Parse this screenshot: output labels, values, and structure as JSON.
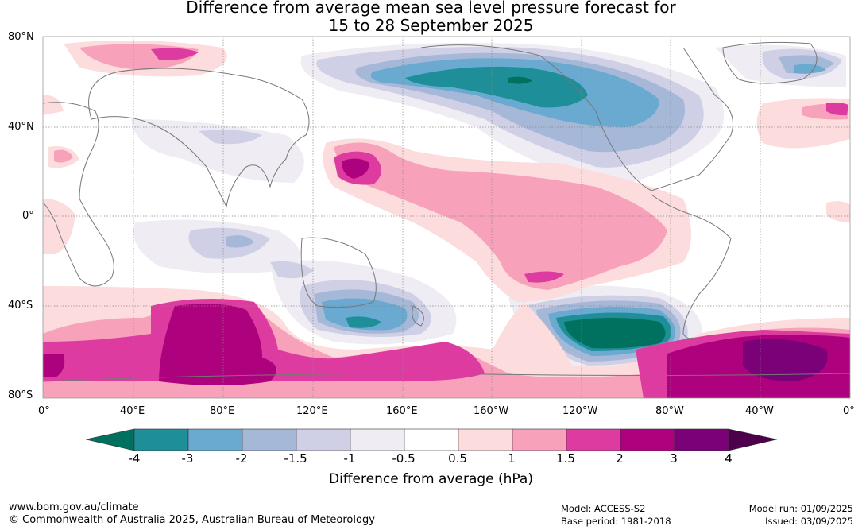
{
  "title_line1": "Difference from average mean sea level pressure forecast for",
  "title_line2": "15 to 28 September 2025",
  "lat_labels": [
    "80°N",
    "40°N",
    "0°",
    "40°S",
    "80°S"
  ],
  "lon_labels": [
    "0°",
    "40°E",
    "80°E",
    "120°E",
    "160°E",
    "160°W",
    "120°W",
    "80°W",
    "40°W",
    "0°"
  ],
  "colorbar": {
    "title": "Difference from average (hPa)",
    "ticks": [
      "-4",
      "-3",
      "-2",
      "-1.5",
      "-1",
      "-0.5",
      "0.5",
      "1",
      "1.5",
      "2",
      "3",
      "4"
    ],
    "colors": {
      "below_min": "#00705f",
      "bins": [
        "#1e8f99",
        "#6aa9d0",
        "#a6b8d8",
        "#cfd0e6",
        "#efecf3",
        "#ffffff",
        "#fcdcdc",
        "#f7a1bb",
        "#de3ba0",
        "#ad017e",
        "#7a0177"
      ],
      "above_max": "#4d004b"
    }
  },
  "footer": {
    "url": "www.bom.gov.au/climate",
    "copyright": "© Commonwealth of Australia 2025, Australian Bureau of Meteorology",
    "model": "Model: ACCESS-S2",
    "base_period": "Base period: 1981-2018",
    "model_run": "Model run: 01/09/2025",
    "issued": "Issued: 03/09/2025"
  }
}
